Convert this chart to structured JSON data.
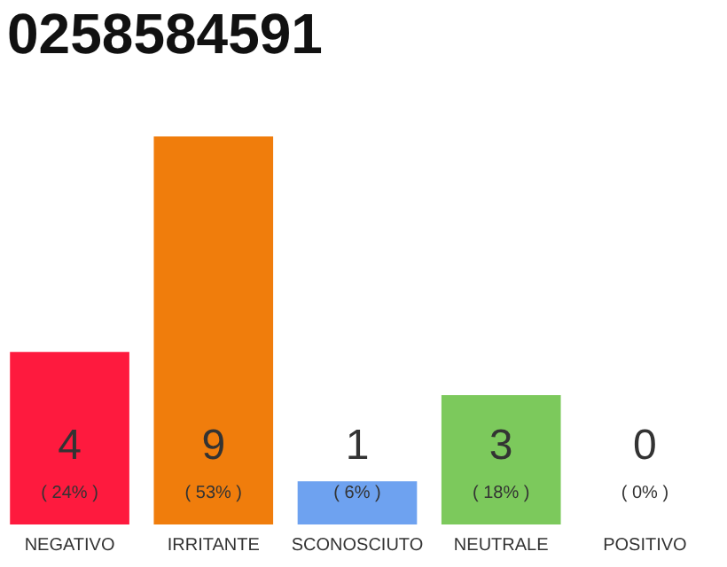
{
  "chart_data": {
    "type": "bar",
    "title": "0258584591",
    "categories": [
      "NEGATIVO",
      "IRRITANTE",
      "SCONOSCIUTO",
      "NEUTRALE",
      "POSITIVO"
    ],
    "values": [
      4,
      9,
      1,
      3,
      0
    ],
    "colors": [
      "#fe1a3e",
      "#f07d0c",
      "#6ea2f0",
      "#7cc95c",
      "#e0e0e0"
    ],
    "data_labels": true,
    "annotations": [
      "( 24% )",
      "( 53% )",
      "( 6% )",
      "( 18% )",
      "( 0% )"
    ],
    "tick_labels": "x"
  }
}
